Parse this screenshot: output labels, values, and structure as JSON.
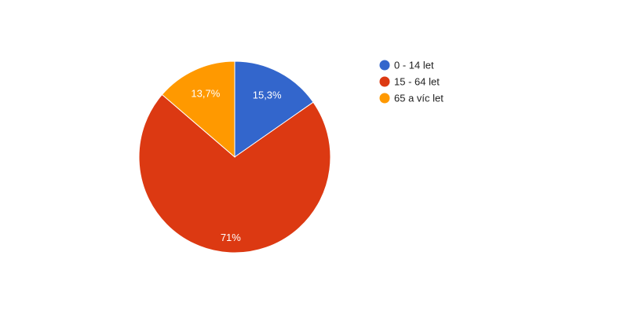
{
  "chart_data": {
    "type": "pie",
    "categories": [
      "0 - 14 let",
      "15 - 64 let",
      "65 a víc let"
    ],
    "values": [
      15.3,
      71,
      13.7
    ],
    "data_labels": [
      "15,3%",
      "71%",
      "13,7%"
    ],
    "colors": [
      "#3366cc",
      "#dc3912",
      "#ff9900"
    ],
    "legend": "right",
    "start_angle_deg": 0,
    "direction": "clockwise"
  }
}
